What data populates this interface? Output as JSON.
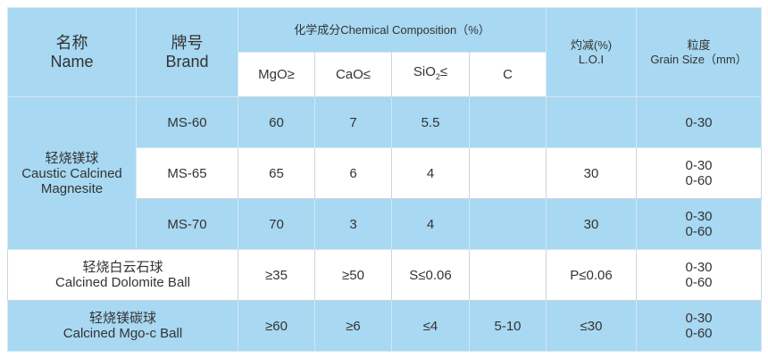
{
  "header": {
    "name": {
      "zh": "名称",
      "en": "Name"
    },
    "brand": {
      "zh": "牌号",
      "en": "Brand"
    },
    "chemical_composition": "化学成分Chemical Composition（%）",
    "components": [
      "MgO≥",
      "CaO≤",
      {
        "base": "SiO",
        "sub": "2",
        "suffix": "≤"
      },
      "C"
    ],
    "loi": {
      "zh": "灼减(%)",
      "en": "L.O.I"
    },
    "grain_size": {
      "zh": "粒度",
      "en": "Grain Size（mm）"
    }
  },
  "rows": [
    {
      "name": {
        "zh": "轻烧镁球",
        "en": "Caustic Calcined Magnesite"
      },
      "grades": [
        {
          "brand": "MS-60",
          "cells": [
            "60",
            "7",
            "5.5",
            null,
            null
          ],
          "grain_size": [
            "0-30"
          ]
        },
        {
          "brand": "MS-65",
          "cells": [
            "65",
            "6",
            "4",
            null,
            "30"
          ],
          "grain_size": [
            "0-30",
            "0-60"
          ]
        },
        {
          "brand": "MS-70",
          "cells": [
            "70",
            "3",
            "4",
            null,
            "30"
          ],
          "grain_size": [
            "0-30",
            "0-60"
          ]
        }
      ]
    },
    {
      "name": {
        "zh": "轻烧白云石球",
        "en": "Calcined Dolomite Ball"
      },
      "grades": [
        {
          "brand": null,
          "cells": [
            "≥35",
            "≥50",
            "S≤0.06",
            null,
            "P≤0.06"
          ],
          "grain_size": [
            "0-30",
            "0-60"
          ]
        }
      ]
    },
    {
      "name": {
        "zh": "轻烧镁碳球",
        "en": "Calcined Mgo-c Ball"
      },
      "grades": [
        {
          "brand": null,
          "cells": [
            "≥60",
            "≥6",
            "≤4",
            "5-10",
            "≤30"
          ],
          "grain_size": [
            "0-30",
            "0-60"
          ]
        }
      ]
    }
  ]
}
